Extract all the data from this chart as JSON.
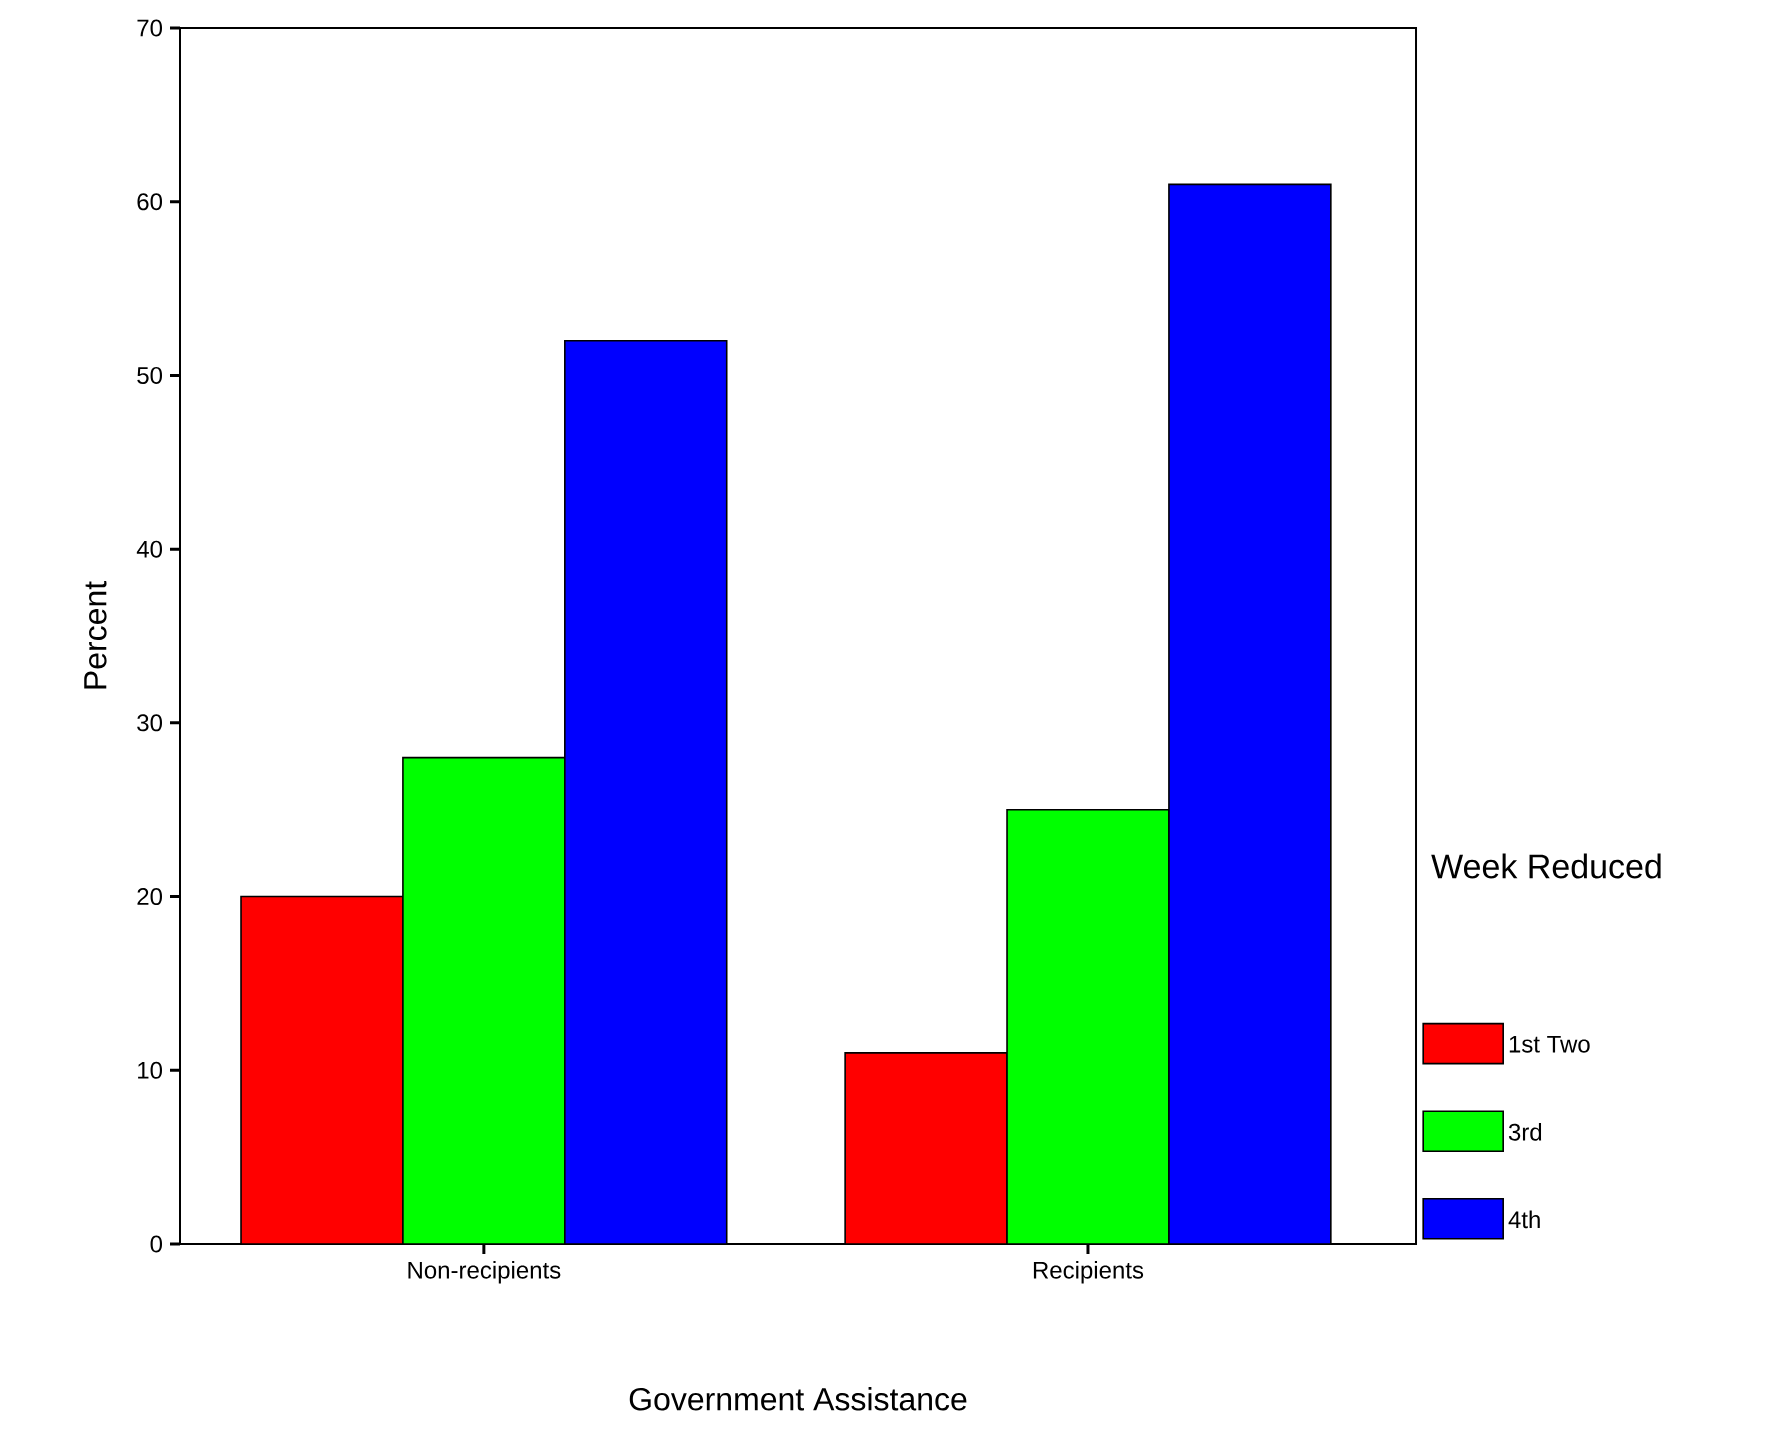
{
  "chart_data": {
    "type": "bar",
    "xlabel": "Government Assistance",
    "ylabel": "Percent",
    "legend_title": "Week Reduced",
    "categories": [
      "Non-recipients",
      "Recipients"
    ],
    "series": [
      {
        "name": "1st Two",
        "color": "#ff0000",
        "values": [
          20,
          11
        ]
      },
      {
        "name": "3rd",
        "color": "#00ff00",
        "values": [
          28,
          25
        ]
      },
      {
        "name": "4th",
        "color": "#0000ff",
        "values": [
          52,
          61
        ]
      }
    ],
    "ylim": [
      0,
      70
    ],
    "yticks": [
      0,
      10,
      20,
      30,
      40,
      50,
      60,
      70
    ],
    "legend": "right"
  }
}
